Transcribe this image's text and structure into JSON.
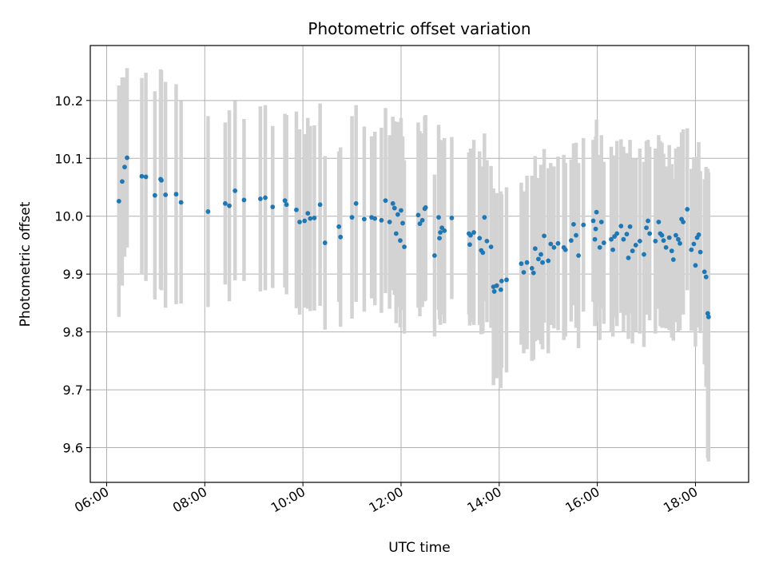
{
  "chart_data": {
    "type": "scatter",
    "title": "Photometric offset variation",
    "xlabel": "UTC time",
    "ylabel": "Photometric offset",
    "x_tick_labels": [
      "06:00",
      "08:00",
      "10:00",
      "12:00",
      "14:00",
      "16:00",
      "18:00"
    ],
    "y_tick_labels": [
      "9.6",
      "9.7",
      "9.8",
      "9.9",
      "10.0",
      "10.1",
      "10.2"
    ],
    "y_ticks": [
      9.6,
      9.7,
      9.8,
      9.9,
      10.0,
      10.1,
      10.2
    ],
    "x_tick_hours": [
      6,
      8,
      10,
      12,
      14,
      16,
      18
    ],
    "xlim": [
      "05:40",
      "19:05"
    ],
    "ylim": [
      9.54,
      10.295
    ],
    "grid": true,
    "point_color": "#1f77b4",
    "errorbar_color": "#d3d3d3",
    "points": [
      {
        "x": "06:15",
        "y": 10.026,
        "err": 0.2
      },
      {
        "x": "06:19",
        "y": 10.06,
        "err": 0.18
      },
      {
        "x": "06:22",
        "y": 10.085,
        "err": 0.155
      },
      {
        "x": "06:25",
        "y": 10.101,
        "err": 0.155
      },
      {
        "x": "06:43",
        "y": 10.069,
        "err": 0.17
      },
      {
        "x": "06:48",
        "y": 10.068,
        "err": 0.18
      },
      {
        "x": "06:59",
        "y": 10.036,
        "err": 0.18
      },
      {
        "x": "07:06",
        "y": 10.064,
        "err": 0.19
      },
      {
        "x": "07:07",
        "y": 10.062,
        "err": 0.19
      },
      {
        "x": "07:12",
        "y": 10.037,
        "err": 0.195
      },
      {
        "x": "07:25",
        "y": 10.038,
        "err": 0.19
      },
      {
        "x": "07:31",
        "y": 10.024,
        "err": 0.175
      },
      {
        "x": "08:04",
        "y": 10.008,
        "err": 0.165
      },
      {
        "x": "08:25",
        "y": 10.022,
        "err": 0.14
      },
      {
        "x": "08:30",
        "y": 10.018,
        "err": 0.165
      },
      {
        "x": "08:37",
        "y": 10.044,
        "err": 0.155
      },
      {
        "x": "08:48",
        "y": 10.028,
        "err": 0.14
      },
      {
        "x": "09:08",
        "y": 10.03,
        "err": 0.16
      },
      {
        "x": "09:14",
        "y": 10.032,
        "err": 0.16
      },
      {
        "x": "09:23",
        "y": 10.016,
        "err": 0.14
      },
      {
        "x": "09:38",
        "y": 10.027,
        "err": 0.15
      },
      {
        "x": "09:40",
        "y": 10.02,
        "err": 0.155
      },
      {
        "x": "09:52",
        "y": 10.011,
        "err": 0.17
      },
      {
        "x": "09:56",
        "y": 9.99,
        "err": 0.16
      },
      {
        "x": "10:02",
        "y": 9.992,
        "err": 0.15
      },
      {
        "x": "10:06",
        "y": 10.005,
        "err": 0.165
      },
      {
        "x": "10:09",
        "y": 9.996,
        "err": 0.16
      },
      {
        "x": "10:14",
        "y": 9.997,
        "err": 0.16
      },
      {
        "x": "10:21",
        "y": 10.02,
        "err": 0.175
      },
      {
        "x": "10:27",
        "y": 9.954,
        "err": 0.15
      },
      {
        "x": "10:44",
        "y": 9.982,
        "err": 0.13
      },
      {
        "x": "10:46",
        "y": 9.964,
        "err": 0.155
      },
      {
        "x": "11:00",
        "y": 9.998,
        "err": 0.175
      },
      {
        "x": "11:05",
        "y": 10.022,
        "err": 0.17
      },
      {
        "x": "11:15",
        "y": 9.995,
        "err": 0.16
      },
      {
        "x": "11:24",
        "y": 9.998,
        "err": 0.14
      },
      {
        "x": "11:28",
        "y": 9.996,
        "err": 0.15
      },
      {
        "x": "11:36",
        "y": 9.993,
        "err": 0.16
      },
      {
        "x": "11:41",
        "y": 10.027,
        "err": 0.16
      },
      {
        "x": "11:46",
        "y": 9.99,
        "err": 0.15
      },
      {
        "x": "11:50",
        "y": 10.022,
        "err": 0.15
      },
      {
        "x": "11:52",
        "y": 10.014,
        "err": 0.15
      },
      {
        "x": "11:54",
        "y": 9.97,
        "err": 0.155
      },
      {
        "x": "11:56",
        "y": 10.003,
        "err": 0.16
      },
      {
        "x": "11:59",
        "y": 9.958,
        "err": 0.15
      },
      {
        "x": "12:00",
        "y": 10.01,
        "err": 0.16
      },
      {
        "x": "12:02",
        "y": 9.988,
        "err": 0.15
      },
      {
        "x": "12:04",
        "y": 9.947,
        "err": 0.15
      },
      {
        "x": "12:21",
        "y": 10.002,
        "err": 0.16
      },
      {
        "x": "12:23",
        "y": 9.987,
        "err": 0.16
      },
      {
        "x": "12:26",
        "y": 9.993,
        "err": 0.15
      },
      {
        "x": "12:29",
        "y": 10.013,
        "err": 0.16
      },
      {
        "x": "12:30",
        "y": 10.015,
        "err": 0.16
      },
      {
        "x": "12:41",
        "y": 9.932,
        "err": 0.14
      },
      {
        "x": "12:46",
        "y": 9.998,
        "err": 0.16
      },
      {
        "x": "12:47",
        "y": 9.962,
        "err": 0.14
      },
      {
        "x": "12:48",
        "y": 9.972,
        "err": 0.16
      },
      {
        "x": "12:50",
        "y": 9.98,
        "err": 0.15
      },
      {
        "x": "12:53",
        "y": 9.975,
        "err": 0.16
      },
      {
        "x": "13:02",
        "y": 9.997,
        "err": 0.14
      },
      {
        "x": "13:23",
        "y": 9.97,
        "err": 0.14
      },
      {
        "x": "13:24",
        "y": 9.951,
        "err": 0.14
      },
      {
        "x": "13:25",
        "y": 9.967,
        "err": 0.15
      },
      {
        "x": "13:29",
        "y": 9.972,
        "err": 0.16
      },
      {
        "x": "13:36",
        "y": 9.962,
        "err": 0.15
      },
      {
        "x": "13:38",
        "y": 9.941,
        "err": 0.145
      },
      {
        "x": "13:40",
        "y": 9.937,
        "err": 0.14
      },
      {
        "x": "13:42",
        "y": 9.998,
        "err": 0.145
      },
      {
        "x": "13:45",
        "y": 9.957,
        "err": 0.14
      },
      {
        "x": "13:50",
        "y": 9.947,
        "err": 0.14
      },
      {
        "x": "13:53",
        "y": 9.878,
        "err": 0.17
      },
      {
        "x": "13:54",
        "y": 9.87,
        "err": 0.15
      },
      {
        "x": "13:57",
        "y": 9.88,
        "err": 0.16
      },
      {
        "x": "14:02",
        "y": 9.873,
        "err": 0.17
      },
      {
        "x": "14:03",
        "y": 9.888,
        "err": 0.15
      },
      {
        "x": "14:09",
        "y": 9.89,
        "err": 0.16
      },
      {
        "x": "14:27",
        "y": 9.918,
        "err": 0.14
      },
      {
        "x": "14:30",
        "y": 9.903,
        "err": 0.14
      },
      {
        "x": "14:34",
        "y": 9.92,
        "err": 0.15
      },
      {
        "x": "14:40",
        "y": 9.91,
        "err": 0.16
      },
      {
        "x": "14:42",
        "y": 9.902,
        "err": 0.15
      },
      {
        "x": "14:44",
        "y": 9.944,
        "err": 0.16
      },
      {
        "x": "14:48",
        "y": 9.926,
        "err": 0.14
      },
      {
        "x": "14:51",
        "y": 9.934,
        "err": 0.155
      },
      {
        "x": "14:53",
        "y": 9.92,
        "err": 0.15
      },
      {
        "x": "14:55",
        "y": 9.966,
        "err": 0.15
      },
      {
        "x": "15:00",
        "y": 9.923,
        "err": 0.16
      },
      {
        "x": "15:03",
        "y": 9.952,
        "err": 0.14
      },
      {
        "x": "15:07",
        "y": 9.946,
        "err": 0.14
      },
      {
        "x": "15:12",
        "y": 9.953,
        "err": 0.15
      },
      {
        "x": "15:19",
        "y": 9.946,
        "err": 0.16
      },
      {
        "x": "15:21",
        "y": 9.942,
        "err": 0.15
      },
      {
        "x": "15:28",
        "y": 9.958,
        "err": 0.14
      },
      {
        "x": "15:31",
        "y": 9.986,
        "err": 0.14
      },
      {
        "x": "15:34",
        "y": 9.967,
        "err": 0.16
      },
      {
        "x": "15:37",
        "y": 9.932,
        "err": 0.16
      },
      {
        "x": "15:43",
        "y": 9.985,
        "err": 0.15
      },
      {
        "x": "15:55",
        "y": 9.992,
        "err": 0.14
      },
      {
        "x": "15:57",
        "y": 9.96,
        "err": 0.15
      },
      {
        "x": "15:58",
        "y": 9.978,
        "err": 0.16
      },
      {
        "x": "15:59",
        "y": 10.007,
        "err": 0.16
      },
      {
        "x": "16:03",
        "y": 9.946,
        "err": 0.16
      },
      {
        "x": "16:05",
        "y": 9.99,
        "err": 0.15
      },
      {
        "x": "16:08",
        "y": 9.954,
        "err": 0.14
      },
      {
        "x": "16:17",
        "y": 9.96,
        "err": 0.16
      },
      {
        "x": "16:19",
        "y": 9.942,
        "err": 0.15
      },
      {
        "x": "16:21",
        "y": 9.965,
        "err": 0.14
      },
      {
        "x": "16:24",
        "y": 9.97,
        "err": 0.16
      },
      {
        "x": "16:29",
        "y": 9.983,
        "err": 0.15
      },
      {
        "x": "16:32",
        "y": 9.96,
        "err": 0.16
      },
      {
        "x": "16:36",
        "y": 9.969,
        "err": 0.14
      },
      {
        "x": "16:38",
        "y": 9.928,
        "err": 0.14
      },
      {
        "x": "16:40",
        "y": 9.982,
        "err": 0.15
      },
      {
        "x": "16:43",
        "y": 9.94,
        "err": 0.16
      },
      {
        "x": "16:47",
        "y": 9.95,
        "err": 0.15
      },
      {
        "x": "16:52",
        "y": 9.957,
        "err": 0.16
      },
      {
        "x": "16:57",
        "y": 9.934,
        "err": 0.16
      },
      {
        "x": "17:00",
        "y": 9.98,
        "err": 0.15
      },
      {
        "x": "17:02",
        "y": 9.992,
        "err": 0.14
      },
      {
        "x": "17:04",
        "y": 9.97,
        "err": 0.15
      },
      {
        "x": "17:11",
        "y": 9.957,
        "err": 0.16
      },
      {
        "x": "17:15",
        "y": 9.99,
        "err": 0.15
      },
      {
        "x": "17:17",
        "y": 9.97,
        "err": 0.16
      },
      {
        "x": "17:19",
        "y": 9.967,
        "err": 0.16
      },
      {
        "x": "17:21",
        "y": 9.958,
        "err": 0.15
      },
      {
        "x": "17:24",
        "y": 9.946,
        "err": 0.14
      },
      {
        "x": "17:28",
        "y": 9.963,
        "err": 0.16
      },
      {
        "x": "17:31",
        "y": 9.94,
        "err": 0.15
      },
      {
        "x": "17:33",
        "y": 9.925,
        "err": 0.14
      },
      {
        "x": "17:36",
        "y": 9.967,
        "err": 0.15
      },
      {
        "x": "17:39",
        "y": 9.96,
        "err": 0.16
      },
      {
        "x": "17:41",
        "y": 9.953,
        "err": 0.15
      },
      {
        "x": "17:43",
        "y": 9.995,
        "err": 0.15
      },
      {
        "x": "17:45",
        "y": 9.99,
        "err": 0.16
      },
      {
        "x": "17:50",
        "y": 10.012,
        "err": 0.14
      },
      {
        "x": "17:55",
        "y": 9.942,
        "err": 0.14
      },
      {
        "x": "17:58",
        "y": 9.952,
        "err": 0.15
      },
      {
        "x": "18:00",
        "y": 9.915,
        "err": 0.14
      },
      {
        "x": "18:02",
        "y": 9.963,
        "err": 0.14
      },
      {
        "x": "18:04",
        "y": 9.968,
        "err": 0.16
      },
      {
        "x": "18:06",
        "y": 9.938,
        "err": 0.14
      },
      {
        "x": "18:11",
        "y": 9.904,
        "err": 0.16
      },
      {
        "x": "18:13",
        "y": 9.895,
        "err": 0.19
      },
      {
        "x": "18:15",
        "y": 9.832,
        "err": 0.25
      },
      {
        "x": "18:16",
        "y": 9.826,
        "err": 0.25
      }
    ]
  }
}
